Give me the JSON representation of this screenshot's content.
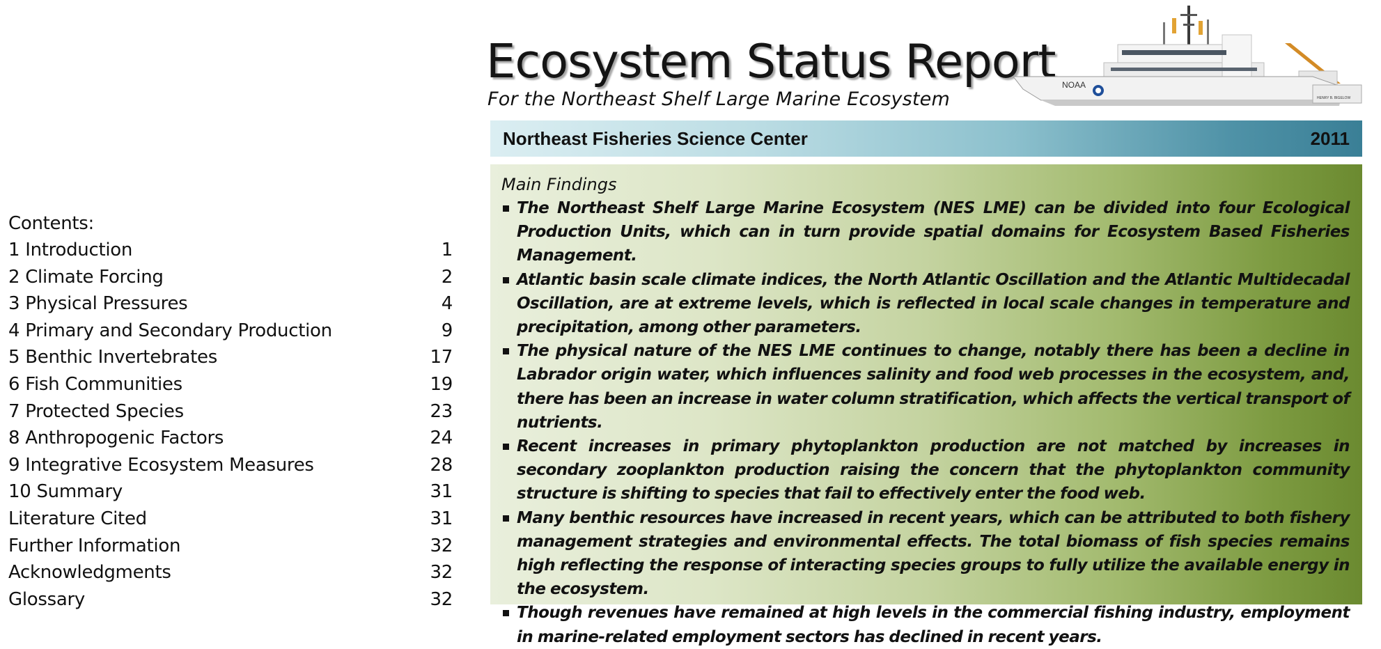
{
  "header": {
    "title": "Ecosystem Status Report",
    "subtitle": "For the Northeast Shelf Large Marine Ecosystem",
    "center": "Northeast Fisheries Science Center",
    "year": "2011"
  },
  "ship_image": {
    "hull_text": "NOAA",
    "stern_text": "HENRY B. BIGELOW"
  },
  "contents": {
    "heading": "Contents:",
    "items": [
      {
        "label": "1 Introduction",
        "page": "1"
      },
      {
        "label": "2 Climate Forcing",
        "page": "2"
      },
      {
        "label": "3 Physical Pressures",
        "page": "4"
      },
      {
        "label": "4 Primary and Secondary Production",
        "page": "9"
      },
      {
        "label": "5 Benthic Invertebrates",
        "page": "17"
      },
      {
        "label": "6 Fish Communities",
        "page": "19"
      },
      {
        "label": "7 Protected Species",
        "page": "23"
      },
      {
        "label": "8 Anthropogenic Factors",
        "page": "24"
      },
      {
        "label": "9 Integrative Ecosystem Measures",
        "page": "28"
      },
      {
        "label": "10 Summary",
        "page": "31"
      },
      {
        "label": "Literature Cited",
        "page": "31"
      },
      {
        "label": "Further Information",
        "page": "32"
      },
      {
        "label": "Acknowledgments",
        "page": "32"
      },
      {
        "label": "Glossary",
        "page": "32"
      }
    ]
  },
  "findings": {
    "heading": "Main Findings",
    "items": [
      "The Northeast Shelf Large Marine Ecosystem (NES LME) can be divided into four Ecological Production Units, which can in turn provide spatial domains for  Ecosystem Based Fisheries Management.",
      "Atlantic basin scale climate indices, the North Atlantic Oscillation and the Atlantic Multidecadal Oscillation, are at extreme levels, which is reflected in local scale changes in temperature and precipitation, among other parameters.",
      "The physical nature of the NES LME continues to change, notably there has been a decline in Labrador origin water, which influences salinity and food web processes in the ecosystem, and, there has been an increase in water column stratification, which affects the vertical transport of nutrients.",
      "Recent increases in primary phytoplankton production are not matched by increases in secondary zooplankton production raising the concern that the phytoplankton community structure is shifting to species that fail to effectively enter the food web.",
      "Many benthic resources have increased in recent years, which can be attributed to both fishery management strategies and environmental effects. The total biomass of fish species remains high reflecting the response of interacting species groups to fully utilize the available energy in the ecosystem.",
      "Though revenues have remained at high levels in the commercial fishing industry, employment in marine-related employment sectors has declined in recent years."
    ]
  },
  "colors": {
    "header_band_start": "#dbeef2",
    "header_band_end": "#3a7f96",
    "findings_start": "#e9efdc",
    "findings_end": "#6b8a30"
  }
}
